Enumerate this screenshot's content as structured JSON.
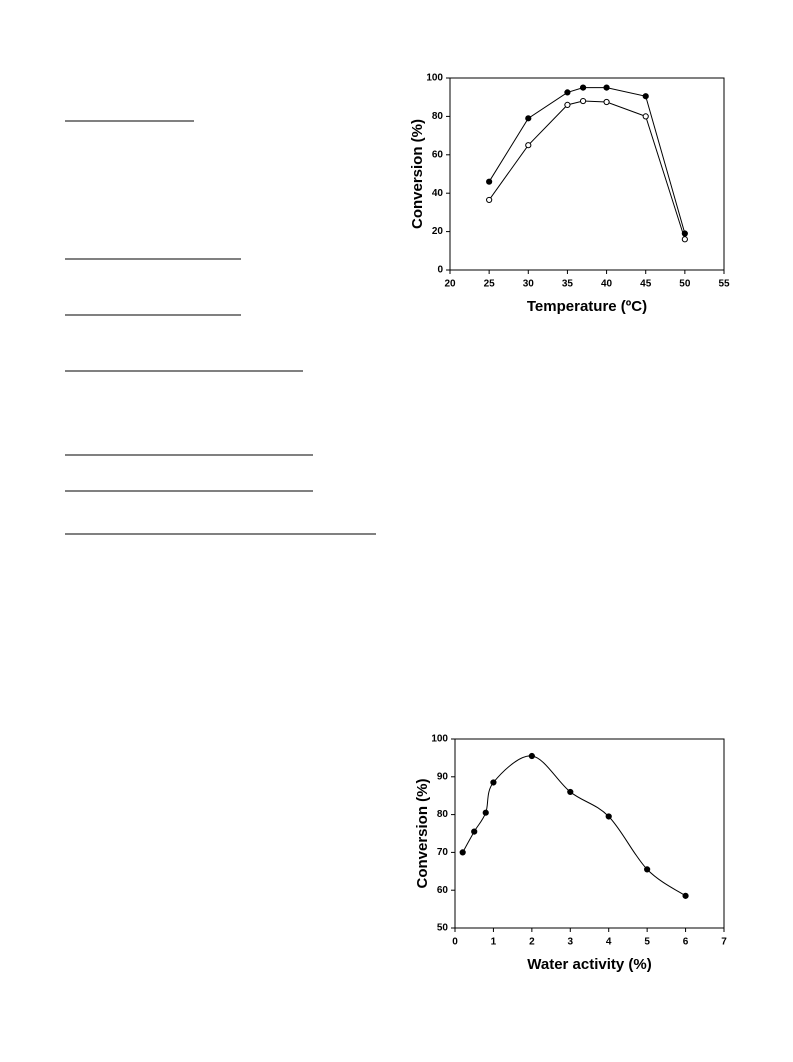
{
  "chart_data": [
    {
      "type": "line",
      "xlabel": "Temperature (ºC)",
      "ylabel": "Conversion (%)",
      "x": [
        25,
        30,
        35,
        37,
        40,
        45,
        50
      ],
      "series": [
        {
          "color": "#000000",
          "marker": "filled",
          "values": [
            46,
            79,
            92.5,
            95,
            95,
            90.5,
            19
          ]
        },
        {
          "color": "#000000",
          "marker": "open",
          "values": [
            36.5,
            65,
            86,
            88,
            87.5,
            80,
            16
          ]
        }
      ],
      "xlim": [
        20,
        55
      ],
      "xticks": [
        20,
        25,
        30,
        35,
        40,
        45,
        50,
        55
      ],
      "ylim": [
        0,
        100
      ],
      "yticks": [
        0,
        20,
        40,
        60,
        80,
        100
      ],
      "grid": false,
      "smooth": false
    },
    {
      "type": "line",
      "xlabel": "Water activity (%)",
      "ylabel": "Conversion (%)",
      "x": [
        0.2,
        0.5,
        0.8,
        1,
        2,
        3,
        4,
        5,
        6
      ],
      "series": [
        {
          "color": "#000000",
          "marker": "filled",
          "values": [
            70,
            75.5,
            80.5,
            88.5,
            95.5,
            86,
            79.5,
            65.5,
            58.5
          ]
        }
      ],
      "xlim": [
        0,
        7
      ],
      "xticks": [
        0,
        1,
        2,
        3,
        4,
        5,
        6,
        7
      ],
      "ylim": [
        50,
        100
      ],
      "yticks": [
        50,
        60,
        70,
        80,
        90,
        100
      ],
      "grid": false,
      "smooth": true
    }
  ]
}
